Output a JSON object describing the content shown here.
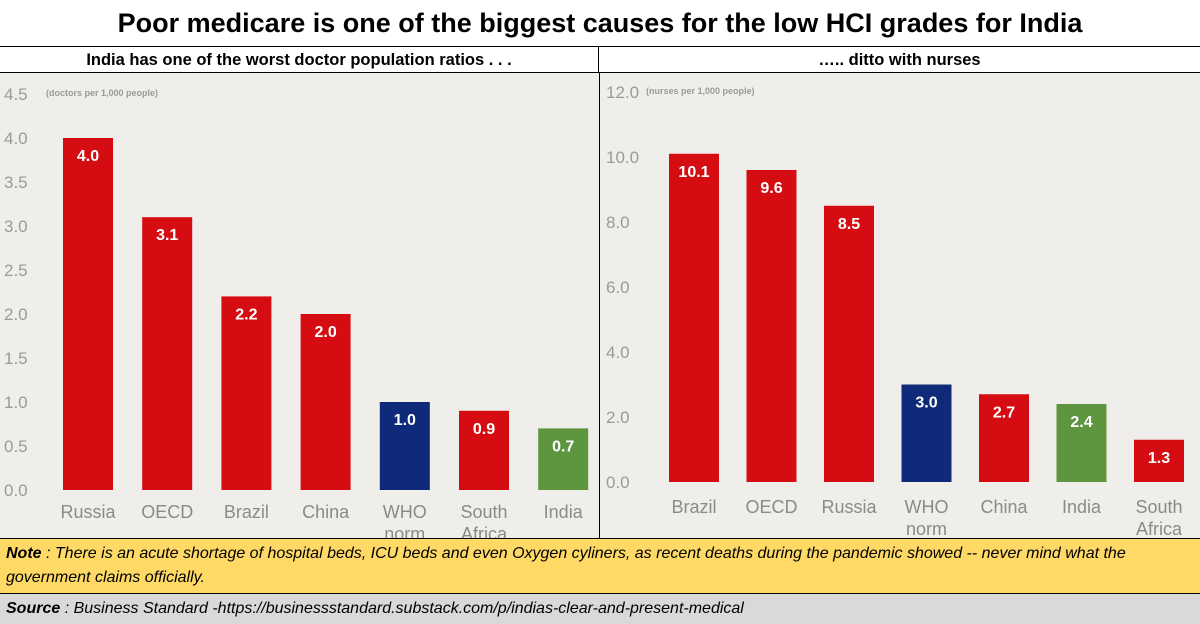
{
  "title": "Poor medicare is one of the biggest causes for the low HCI grades for India",
  "colors": {
    "red": "#d50c12",
    "blue": "#0f2a78",
    "green": "#5e9640"
  },
  "chart_data": [
    {
      "type": "bar",
      "title": "India has one of the worst doctor population ratios . . .",
      "ylabel": "(doctors per 1,000 people)",
      "ylim": [
        0,
        4.5
      ],
      "yticks": [
        "0.0",
        "0.5",
        "1.0",
        "1.5",
        "2.0",
        "2.5",
        "3.0",
        "3.5",
        "4.0",
        "4.5"
      ],
      "categories": [
        [
          "Russia"
        ],
        [
          "OECD"
        ],
        [
          "Brazil"
        ],
        [
          "China"
        ],
        [
          "WHO",
          "norm"
        ],
        [
          "South",
          "Africa"
        ],
        [
          "India"
        ]
      ],
      "values": [
        4.0,
        3.1,
        2.2,
        2.0,
        1.0,
        0.9,
        0.7
      ],
      "value_labels": [
        "4.0",
        "3.1",
        "2.2",
        "2.0",
        "1.0",
        "0.9",
        "0.7"
      ],
      "bar_colors": [
        "red",
        "red",
        "red",
        "red",
        "blue",
        "red",
        "green"
      ]
    },
    {
      "type": "bar",
      "title": "….. ditto with nurses",
      "ylabel": "(nurses per 1,000 people)",
      "ylim": [
        0,
        12
      ],
      "yticks": [
        "0.0",
        "2.0",
        "4.0",
        "6.0",
        "8.0",
        "10.0",
        "12.0"
      ],
      "categories": [
        [
          "Brazil"
        ],
        [
          "OECD"
        ],
        [
          "Russia"
        ],
        [
          "WHO",
          "norm"
        ],
        [
          "China"
        ],
        [
          "India"
        ],
        [
          "South",
          "Africa"
        ]
      ],
      "values": [
        10.1,
        9.6,
        8.5,
        3.0,
        2.7,
        2.4,
        1.3
      ],
      "value_labels": [
        "10.1",
        "9.6",
        "8.5",
        "3.0",
        "2.7",
        "2.4",
        "1.3"
      ],
      "bar_colors": [
        "red",
        "red",
        "red",
        "blue",
        "red",
        "green",
        "red"
      ]
    }
  ],
  "note": {
    "label": "Note",
    "text": " : There is an acute shortage of hospital beds, ICU beds and even Oxygen cyliners, as recent deaths during the pandemic showed  -- never mind what the government claims officially."
  },
  "source": {
    "label": "Source",
    "text": " : Business Standard -https://businessstandard.substack.com/p/indias-clear-and-present-medical"
  }
}
